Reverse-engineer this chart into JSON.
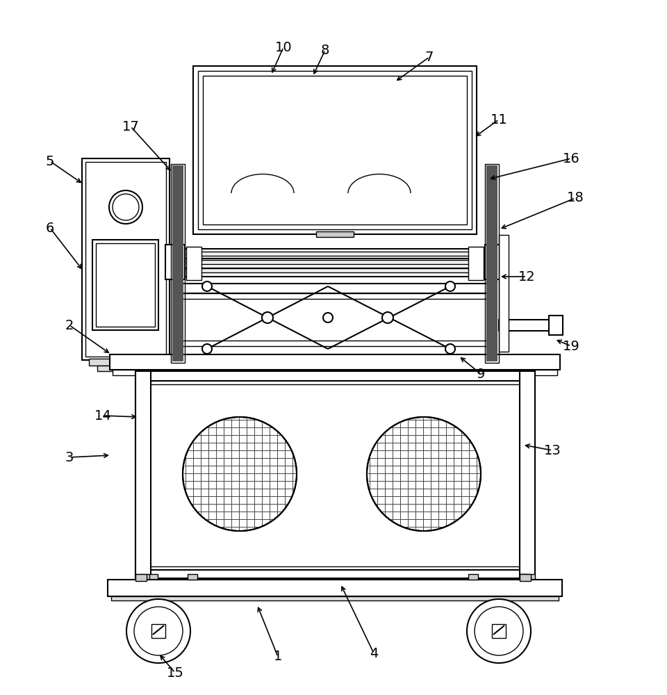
{
  "bg_color": "#ffffff",
  "lw_thin": 1.0,
  "lw_med": 1.5,
  "lw_thick": 2.5,
  "lw_fill": 3.0,
  "annotations": [
    [
      "1",
      400,
      945,
      370,
      870,
      -30,
      0
    ],
    [
      "2",
      100,
      468,
      160,
      510,
      0,
      0
    ],
    [
      "3",
      100,
      658,
      160,
      655,
      0,
      0
    ],
    [
      "4",
      538,
      940,
      490,
      840,
      0,
      0
    ],
    [
      "5",
      72,
      232,
      120,
      265,
      0,
      0
    ],
    [
      "6",
      72,
      328,
      120,
      390,
      0,
      0
    ],
    [
      "7",
      618,
      82,
      568,
      118,
      0,
      0
    ],
    [
      "8",
      468,
      72,
      450,
      110,
      0,
      0
    ],
    [
      "9",
      692,
      538,
      660,
      512,
      0,
      0
    ],
    [
      "10",
      408,
      68,
      390,
      108,
      0,
      0
    ],
    [
      "11",
      718,
      172,
      682,
      198,
      0,
      0
    ],
    [
      "12",
      758,
      398,
      718,
      398,
      0,
      0
    ],
    [
      "13",
      795,
      648,
      752,
      640,
      0,
      0
    ],
    [
      "14",
      148,
      598,
      200,
      600,
      0,
      0
    ],
    [
      "15",
      252,
      968,
      228,
      940,
      0,
      0
    ],
    [
      "16",
      822,
      228,
      702,
      258,
      0,
      0
    ],
    [
      "17",
      188,
      182,
      248,
      248,
      0,
      0
    ],
    [
      "18",
      828,
      285,
      718,
      330,
      0,
      0
    ],
    [
      "19",
      822,
      498,
      798,
      488,
      0,
      0
    ]
  ]
}
